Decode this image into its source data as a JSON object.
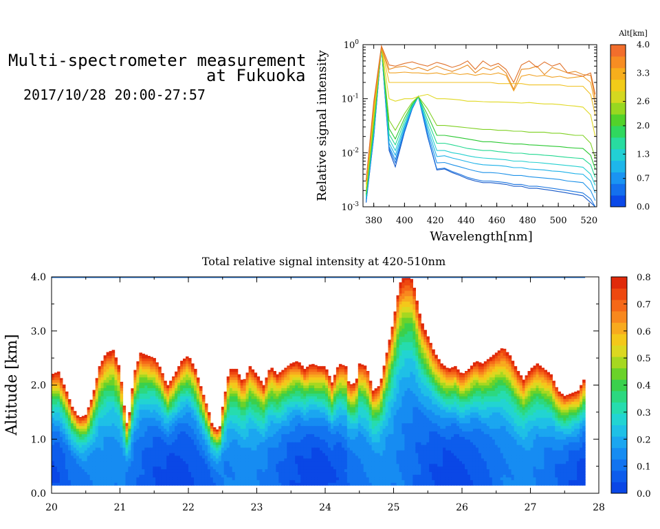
{
  "header": {
    "title_line1": "Multi-spectrometer measurement",
    "title_line2": "at Fukuoka",
    "date_range": "2017/10/28 20:00-27:57"
  },
  "chart_data": [
    {
      "type": "line",
      "xlabel": "Wavelength[nm]",
      "ylabel": "Relative signal intensity",
      "xlim": [
        373,
        525
      ],
      "ylim": [
        0.001,
        1
      ],
      "yscale": "log",
      "xticks": [
        "380",
        "400",
        "420",
        "440",
        "460",
        "480",
        "500",
        "520"
      ],
      "yticks": [
        "10-3",
        "10-2",
        "10-1",
        "100"
      ],
      "x": [
        375,
        380,
        385,
        390,
        394,
        400,
        405,
        409,
        415,
        421,
        426,
        431,
        436,
        441,
        446,
        451,
        456,
        461,
        466,
        471,
        476,
        481,
        486,
        491,
        496,
        501,
        506,
        511,
        516,
        521,
        524
      ],
      "series": [
        {
          "altitude": 0.0,
          "color": "#1256c8",
          "values": [
            0.0012,
            0.02,
            0.9,
            0.011,
            0.0055,
            0.024,
            0.065,
            0.11,
            0.02,
            0.0048,
            0.005,
            0.0043,
            0.0038,
            0.0033,
            0.003,
            0.0028,
            0.0028,
            0.0027,
            0.0026,
            0.0024,
            0.0024,
            0.0022,
            0.0022,
            0.0021,
            0.002,
            0.0019,
            0.0018,
            0.0017,
            0.0016,
            0.0012,
            0.0009
          ]
        },
        {
          "altitude": 0.4,
          "color": "#1a75e0",
          "values": [
            0.0012,
            0.02,
            0.9,
            0.012,
            0.0065,
            0.025,
            0.066,
            0.11,
            0.021,
            0.005,
            0.0052,
            0.0045,
            0.004,
            0.0035,
            0.0032,
            0.003,
            0.003,
            0.0029,
            0.0028,
            0.0026,
            0.0026,
            0.0024,
            0.0024,
            0.0023,
            0.0022,
            0.0021,
            0.002,
            0.0019,
            0.0018,
            0.0014,
            0.001
          ]
        },
        {
          "altitude": 0.8,
          "color": "#1a90e8",
          "values": [
            0.0013,
            0.022,
            0.9,
            0.013,
            0.0075,
            0.027,
            0.068,
            0.11,
            0.024,
            0.0065,
            0.0066,
            0.006,
            0.0055,
            0.005,
            0.0046,
            0.0043,
            0.0043,
            0.0042,
            0.004,
            0.0038,
            0.0038,
            0.0036,
            0.0035,
            0.0034,
            0.0033,
            0.0032,
            0.003,
            0.0029,
            0.0028,
            0.002,
            0.0013
          ]
        },
        {
          "altitude": 1.2,
          "color": "#1ab0e8",
          "values": [
            0.0014,
            0.024,
            0.9,
            0.015,
            0.009,
            0.03,
            0.07,
            0.11,
            0.028,
            0.0085,
            0.0088,
            0.008,
            0.0074,
            0.0068,
            0.0063,
            0.006,
            0.0059,
            0.0058,
            0.0056,
            0.0053,
            0.0053,
            0.005,
            0.0049,
            0.0048,
            0.0046,
            0.0045,
            0.0043,
            0.0041,
            0.004,
            0.003,
            0.0018
          ]
        },
        {
          "altitude": 1.6,
          "color": "#22cfcf",
          "values": [
            0.0015,
            0.026,
            0.9,
            0.018,
            0.011,
            0.033,
            0.072,
            0.11,
            0.033,
            0.011,
            0.011,
            0.01,
            0.0095,
            0.0088,
            0.0083,
            0.008,
            0.0078,
            0.0076,
            0.0074,
            0.007,
            0.007,
            0.0067,
            0.0066,
            0.0064,
            0.0062,
            0.006,
            0.0058,
            0.0056,
            0.0054,
            0.004,
            0.0025
          ]
        },
        {
          "altitude": 2.0,
          "color": "#20d890",
          "values": [
            0.0016,
            0.03,
            0.9,
            0.022,
            0.014,
            0.038,
            0.075,
            0.11,
            0.04,
            0.015,
            0.015,
            0.014,
            0.013,
            0.012,
            0.0115,
            0.011,
            0.011,
            0.0105,
            0.0102,
            0.0098,
            0.0098,
            0.0094,
            0.0093,
            0.009,
            0.0088,
            0.0085,
            0.0082,
            0.008,
            0.0078,
            0.006,
            0.0035
          ]
        },
        {
          "altitude": 2.3,
          "color": "#28c830",
          "values": [
            0.0017,
            0.033,
            0.9,
            0.028,
            0.018,
            0.044,
            0.08,
            0.11,
            0.05,
            0.021,
            0.021,
            0.02,
            0.019,
            0.018,
            0.017,
            0.016,
            0.016,
            0.0155,
            0.015,
            0.0145,
            0.0145,
            0.014,
            0.0138,
            0.0135,
            0.0132,
            0.013,
            0.0125,
            0.0122,
            0.012,
            0.009,
            0.005
          ]
        },
        {
          "altitude": 2.6,
          "color": "#7ed020",
          "values": [
            0.0019,
            0.038,
            0.9,
            0.04,
            0.026,
            0.053,
            0.086,
            0.11,
            0.065,
            0.032,
            0.032,
            0.031,
            0.03,
            0.029,
            0.028,
            0.027,
            0.027,
            0.026,
            0.026,
            0.025,
            0.025,
            0.024,
            0.024,
            0.024,
            0.023,
            0.023,
            0.022,
            0.021,
            0.021,
            0.015,
            0.008
          ]
        },
        {
          "altitude": 3.0,
          "color": "#e0d820",
          "values": [
            0.0022,
            0.05,
            0.9,
            0.1,
            0.09,
            0.1,
            0.1,
            0.11,
            0.12,
            0.1,
            0.1,
            0.098,
            0.095,
            0.09,
            0.09,
            0.088,
            0.087,
            0.087,
            0.086,
            0.085,
            0.083,
            0.085,
            0.082,
            0.08,
            0.08,
            0.078,
            0.075,
            0.073,
            0.07,
            0.05,
            0.02
          ]
        },
        {
          "altitude": 3.3,
          "color": "#f0c020",
          "values": [
            0.0026,
            0.06,
            0.9,
            0.2,
            0.2,
            0.2,
            0.2,
            0.2,
            0.2,
            0.2,
            0.2,
            0.2,
            0.2,
            0.2,
            0.2,
            0.2,
            0.2,
            0.19,
            0.19,
            0.19,
            0.19,
            0.18,
            0.18,
            0.18,
            0.18,
            0.18,
            0.17,
            0.17,
            0.17,
            0.12,
            0.05
          ]
        },
        {
          "altitude": 3.5,
          "color": "#f0a020",
          "values": [
            0.003,
            0.07,
            0.9,
            0.3,
            0.3,
            0.31,
            0.3,
            0.3,
            0.29,
            0.3,
            0.28,
            0.3,
            0.28,
            0.29,
            0.27,
            0.29,
            0.28,
            0.3,
            0.27,
            0.14,
            0.26,
            0.28,
            0.26,
            0.27,
            0.25,
            0.26,
            0.24,
            0.25,
            0.26,
            0.2,
            0.08
          ]
        },
        {
          "altitude": 3.7,
          "color": "#e88a20",
          "values": [
            0.003,
            0.08,
            0.9,
            0.35,
            0.38,
            0.4,
            0.35,
            0.38,
            0.33,
            0.4,
            0.35,
            0.32,
            0.36,
            0.42,
            0.3,
            0.38,
            0.34,
            0.4,
            0.3,
            0.15,
            0.35,
            0.36,
            0.4,
            0.28,
            0.38,
            0.34,
            0.3,
            0.32,
            0.28,
            0.27,
            0.1
          ]
        },
        {
          "altitude": 4.0,
          "color": "#e07028",
          "values": [
            0.003,
            0.09,
            0.95,
            0.42,
            0.4,
            0.45,
            0.48,
            0.44,
            0.4,
            0.47,
            0.43,
            0.38,
            0.42,
            0.5,
            0.35,
            0.5,
            0.4,
            0.45,
            0.35,
            0.2,
            0.42,
            0.5,
            0.38,
            0.48,
            0.4,
            0.45,
            0.3,
            0.28,
            0.26,
            0.3,
            0.12
          ]
        }
      ],
      "colorbar": {
        "label": "Alt[km]",
        "ticks": [
          "0.0",
          "0.7",
          "1.3",
          "2.0",
          "2.6",
          "3.3",
          "4.0"
        ],
        "colors": [
          "#0b49e8",
          "#1470ee",
          "#1a94f2",
          "#1eb6ea",
          "#22d0d4",
          "#28dca0",
          "#30d85e",
          "#52d22a",
          "#98d820",
          "#d4d820",
          "#f2cc18",
          "#f7ae1c",
          "#f78d22",
          "#f26e2c"
        ]
      }
    },
    {
      "type": "heatmap",
      "title": "Total relative signal intensity at 420-510nm",
      "xlabel": "",
      "ylabel": "Altitude [km]",
      "xlim": [
        20,
        28
      ],
      "ylim": [
        0,
        4
      ],
      "xticks": [
        "20",
        "21",
        "22",
        "23",
        "24",
        "25",
        "26",
        "27",
        "28"
      ],
      "yticks": [
        "0.0",
        "1.0",
        "2.0",
        "3.0",
        "4.0"
      ],
      "data_end_hour": 27.8,
      "data_min_altitude": 0.15,
      "top_altitude": [
        [
          20.0,
          2.2
        ],
        [
          20.1,
          2.25
        ],
        [
          20.2,
          1.95
        ],
        [
          20.3,
          1.6
        ],
        [
          20.4,
          1.4
        ],
        [
          20.5,
          1.45
        ],
        [
          20.6,
          1.8
        ],
        [
          20.7,
          2.35
        ],
        [
          20.8,
          2.6
        ],
        [
          20.9,
          2.65
        ],
        [
          21.0,
          2.3
        ],
        [
          21.05,
          1.7
        ],
        [
          21.1,
          1.3
        ],
        [
          21.15,
          1.55
        ],
        [
          21.2,
          2.2
        ],
        [
          21.3,
          2.6
        ],
        [
          21.4,
          2.55
        ],
        [
          21.5,
          2.5
        ],
        [
          21.6,
          2.3
        ],
        [
          21.65,
          2.1
        ],
        [
          21.7,
          2.0
        ],
        [
          21.8,
          2.2
        ],
        [
          21.9,
          2.45
        ],
        [
          22.0,
          2.55
        ],
        [
          22.1,
          2.3
        ],
        [
          22.2,
          1.9
        ],
        [
          22.3,
          1.5
        ],
        [
          22.35,
          1.25
        ],
        [
          22.45,
          1.15
        ],
        [
          22.5,
          1.6
        ],
        [
          22.6,
          2.3
        ],
        [
          22.7,
          2.3
        ],
        [
          22.8,
          2.05
        ],
        [
          22.9,
          2.35
        ],
        [
          23.0,
          2.2
        ],
        [
          23.1,
          2.0
        ],
        [
          23.2,
          2.35
        ],
        [
          23.3,
          2.2
        ],
        [
          23.4,
          2.3
        ],
        [
          23.5,
          2.4
        ],
        [
          23.6,
          2.45
        ],
        [
          23.7,
          2.3
        ],
        [
          23.8,
          2.4
        ],
        [
          23.9,
          2.35
        ],
        [
          24.0,
          2.35
        ],
        [
          24.1,
          2.05
        ],
        [
          24.2,
          2.4
        ],
        [
          24.3,
          2.35
        ],
        [
          24.35,
          2.0
        ],
        [
          24.45,
          2.05
        ],
        [
          24.5,
          2.4
        ],
        [
          24.6,
          2.35
        ],
        [
          24.7,
          1.9
        ],
        [
          24.8,
          2.0
        ],
        [
          24.9,
          2.6
        ],
        [
          25.0,
          3.2
        ],
        [
          25.05,
          3.6
        ],
        [
          25.1,
          3.9
        ],
        [
          25.15,
          4.0
        ],
        [
          25.25,
          4.0
        ],
        [
          25.3,
          3.8
        ],
        [
          25.4,
          3.2
        ],
        [
          25.5,
          2.9
        ],
        [
          25.6,
          2.6
        ],
        [
          25.7,
          2.4
        ],
        [
          25.8,
          2.3
        ],
        [
          25.9,
          2.35
        ],
        [
          26.0,
          2.2
        ],
        [
          26.1,
          2.3
        ],
        [
          26.2,
          2.45
        ],
        [
          26.3,
          2.4
        ],
        [
          26.4,
          2.5
        ],
        [
          26.5,
          2.6
        ],
        [
          26.6,
          2.7
        ],
        [
          26.7,
          2.55
        ],
        [
          26.8,
          2.3
        ],
        [
          26.9,
          2.1
        ],
        [
          27.0,
          2.3
        ],
        [
          27.1,
          2.4
        ],
        [
          27.2,
          2.3
        ],
        [
          27.3,
          2.2
        ],
        [
          27.4,
          1.9
        ],
        [
          27.5,
          1.8
        ],
        [
          27.6,
          1.85
        ],
        [
          27.7,
          1.9
        ],
        [
          27.8,
          2.15
        ]
      ],
      "colorbar": {
        "ticks": [
          "0.0",
          "0.1",
          "0.2",
          "0.3",
          "0.4",
          "0.5",
          "0.6",
          "0.7",
          "0.8"
        ],
        "colors": [
          "#0a47e6",
          "#0d5cec",
          "#1274f0",
          "#168cf2",
          "#1ba6f0",
          "#1fc0e6",
          "#22d4d2",
          "#26dcae",
          "#2cd880",
          "#3ad04c",
          "#6ad22a",
          "#a6d820",
          "#dcd820",
          "#f4c81a",
          "#f8aa1e",
          "#f8881e",
          "#f56818",
          "#ee4810",
          "#e02a0a"
        ]
      }
    }
  ]
}
